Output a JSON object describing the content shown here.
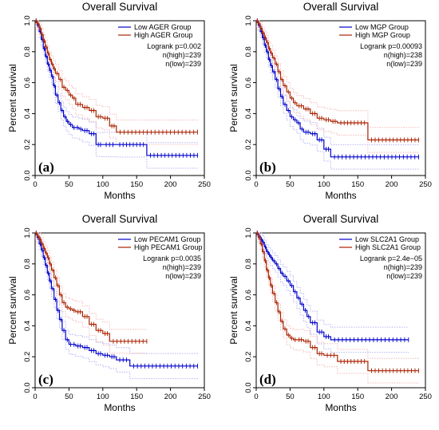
{
  "chart_data": [
    {
      "type": "line",
      "tag": "(a)",
      "title": "Overall Survival",
      "xlabel": "Months",
      "ylabel": "Percent survival",
      "xlim": [
        0,
        250
      ],
      "ylim": [
        0,
        1
      ],
      "xticks": [
        0,
        50,
        100,
        150,
        200,
        250
      ],
      "yticks": [
        0.0,
        0.2,
        0.4,
        0.6,
        0.8,
        1.0
      ],
      "legend_position": "top-right",
      "stats": [
        "Logrank p=0.002",
        "n(high)=239",
        "n(low)=239"
      ],
      "series": [
        {
          "name": "Low AGER Group",
          "color": "#0000cc",
          "x": [
            0,
            3,
            6,
            9,
            12,
            15,
            18,
            21,
            24,
            27,
            30,
            34,
            38,
            42,
            46,
            50,
            55,
            60,
            65,
            70,
            80,
            90,
            100,
            120,
            165,
            240
          ],
          "y": [
            1.0,
            0.97,
            0.93,
            0.88,
            0.82,
            0.77,
            0.72,
            0.68,
            0.64,
            0.58,
            0.52,
            0.47,
            0.42,
            0.38,
            0.35,
            0.33,
            0.31,
            0.31,
            0.3,
            0.29,
            0.27,
            0.2,
            0.2,
            0.2,
            0.13,
            0.13
          ]
        },
        {
          "name": "High AGER Group",
          "color": "#aa2200",
          "x": [
            0,
            3,
            6,
            9,
            12,
            15,
            18,
            21,
            24,
            27,
            30,
            35,
            40,
            45,
            50,
            55,
            60,
            70,
            80,
            90,
            100,
            110,
            120,
            240
          ],
          "y": [
            1.0,
            0.98,
            0.95,
            0.91,
            0.87,
            0.83,
            0.79,
            0.75,
            0.72,
            0.69,
            0.66,
            0.62,
            0.57,
            0.55,
            0.52,
            0.5,
            0.46,
            0.44,
            0.42,
            0.38,
            0.37,
            0.32,
            0.28,
            0.28
          ]
        }
      ]
    },
    {
      "type": "line",
      "tag": "(b)",
      "title": "Overall Survival",
      "xlabel": "Months",
      "ylabel": "Percent survival",
      "xlim": [
        0,
        250
      ],
      "ylim": [
        0,
        1
      ],
      "xticks": [
        0,
        50,
        100,
        150,
        200,
        250
      ],
      "yticks": [
        0.0,
        0.2,
        0.4,
        0.6,
        0.8,
        1.0
      ],
      "legend_position": "top-right",
      "stats": [
        "Logrank p=0.00093",
        "n(high)=238",
        "n(low)=239"
      ],
      "series": [
        {
          "name": "Low MGP Group",
          "color": "#0000cc",
          "x": [
            0,
            3,
            6,
            9,
            12,
            15,
            18,
            21,
            24,
            28,
            32,
            36,
            40,
            45,
            50,
            55,
            60,
            65,
            70,
            80,
            90,
            100,
            110,
            240
          ],
          "y": [
            1.0,
            0.97,
            0.93,
            0.89,
            0.84,
            0.8,
            0.75,
            0.71,
            0.67,
            0.62,
            0.56,
            0.51,
            0.46,
            0.42,
            0.38,
            0.36,
            0.34,
            0.3,
            0.28,
            0.27,
            0.23,
            0.17,
            0.12,
            0.12
          ]
        },
        {
          "name": "High MGP Group",
          "color": "#aa2200",
          "x": [
            0,
            3,
            6,
            9,
            12,
            15,
            18,
            21,
            24,
            28,
            32,
            36,
            40,
            45,
            50,
            55,
            60,
            70,
            80,
            90,
            100,
            110,
            120,
            165,
            240
          ],
          "y": [
            1.0,
            0.98,
            0.95,
            0.92,
            0.89,
            0.86,
            0.82,
            0.79,
            0.76,
            0.72,
            0.67,
            0.62,
            0.58,
            0.54,
            0.5,
            0.47,
            0.45,
            0.43,
            0.4,
            0.37,
            0.36,
            0.35,
            0.34,
            0.23,
            0.23
          ]
        }
      ]
    },
    {
      "type": "line",
      "tag": "(c)",
      "title": "Overall Survival",
      "xlabel": "Months",
      "ylabel": "Percent survival",
      "xlim": [
        0,
        250
      ],
      "ylim": [
        0,
        1
      ],
      "xticks": [
        0,
        50,
        100,
        150,
        200,
        250
      ],
      "yticks": [
        0.0,
        0.2,
        0.4,
        0.6,
        0.8,
        1.0
      ],
      "legend_position": "top-right",
      "stats": [
        "Logrank p=0.0035",
        "n(high)=239",
        "n(low)=239"
      ],
      "series": [
        {
          "name": "Low PECAM1 Group",
          "color": "#0000cc",
          "x": [
            0,
            3,
            6,
            9,
            12,
            15,
            18,
            21,
            24,
            28,
            32,
            36,
            40,
            45,
            50,
            55,
            60,
            70,
            80,
            90,
            100,
            110,
            120,
            140,
            240
          ],
          "y": [
            1.0,
            0.97,
            0.93,
            0.89,
            0.84,
            0.79,
            0.74,
            0.69,
            0.64,
            0.57,
            0.5,
            0.44,
            0.37,
            0.31,
            0.28,
            0.28,
            0.27,
            0.26,
            0.24,
            0.22,
            0.21,
            0.2,
            0.18,
            0.14,
            0.14
          ]
        },
        {
          "name": "High PECAM1 Group",
          "color": "#aa2200",
          "x": [
            0,
            3,
            6,
            9,
            12,
            15,
            18,
            21,
            24,
            28,
            32,
            36,
            40,
            45,
            50,
            55,
            60,
            70,
            80,
            90,
            100,
            110,
            165
          ],
          "y": [
            1.0,
            0.98,
            0.96,
            0.93,
            0.9,
            0.87,
            0.84,
            0.8,
            0.76,
            0.71,
            0.66,
            0.6,
            0.55,
            0.52,
            0.51,
            0.5,
            0.49,
            0.46,
            0.41,
            0.37,
            0.35,
            0.3,
            0.3
          ]
        }
      ]
    },
    {
      "type": "line",
      "tag": "(d)",
      "title": "Overall Survival",
      "xlabel": "Months",
      "ylabel": "Percent survival",
      "xlim": [
        0,
        250
      ],
      "ylim": [
        0,
        1
      ],
      "xticks": [
        0,
        50,
        100,
        150,
        200,
        250
      ],
      "yticks": [
        0.0,
        0.2,
        0.4,
        0.6,
        0.8,
        1.0
      ],
      "legend_position": "top-right",
      "stats": [
        "Logrank p=2.4e−05",
        "n(high)=239",
        "n(low)=239"
      ],
      "series": [
        {
          "name": "Low SLC2A1 Group",
          "color": "#0000cc",
          "x": [
            0,
            3,
            6,
            9,
            12,
            15,
            18,
            21,
            24,
            28,
            32,
            36,
            40,
            45,
            50,
            55,
            60,
            65,
            70,
            75,
            80,
            90,
            100,
            110,
            225
          ],
          "y": [
            1.0,
            0.98,
            0.96,
            0.94,
            0.91,
            0.88,
            0.86,
            0.84,
            0.82,
            0.8,
            0.77,
            0.74,
            0.72,
            0.69,
            0.66,
            0.62,
            0.58,
            0.54,
            0.5,
            0.46,
            0.42,
            0.36,
            0.33,
            0.31,
            0.31
          ]
        },
        {
          "name": "High SLC2A1 Group",
          "color": "#aa2200",
          "x": [
            0,
            3,
            6,
            9,
            12,
            15,
            18,
            21,
            24,
            28,
            32,
            36,
            40,
            45,
            50,
            55,
            60,
            70,
            80,
            90,
            100,
            120,
            165,
            240
          ],
          "y": [
            1.0,
            0.97,
            0.93,
            0.88,
            0.82,
            0.76,
            0.71,
            0.66,
            0.61,
            0.55,
            0.49,
            0.43,
            0.38,
            0.34,
            0.32,
            0.31,
            0.31,
            0.3,
            0.26,
            0.22,
            0.21,
            0.17,
            0.11,
            0.11
          ]
        }
      ]
    }
  ]
}
